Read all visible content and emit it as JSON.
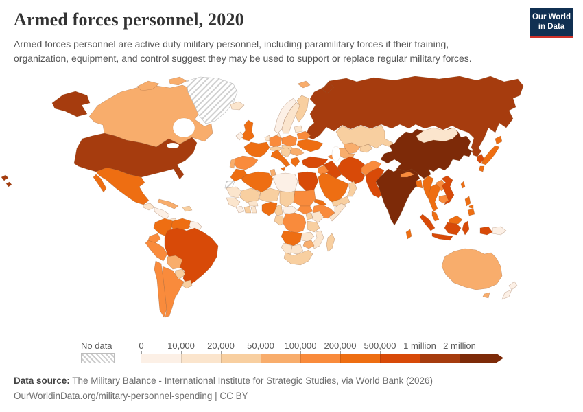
{
  "header": {
    "title": "Armed forces personnel, 2020",
    "subtitle": "Armed forces personnel are active duty military personnel, including paramilitary forces if their training, organization, equipment, and control suggest they may be used to support or replace regular military forces.",
    "logo": {
      "line1": "Our World",
      "line2": "in Data",
      "bg": "#103052",
      "accent": "#cf3129"
    }
  },
  "legend": {
    "no_data_label": "No data",
    "tick_labels": [
      "0",
      "10,000",
      "20,000",
      "50,000",
      "100,000",
      "200,000",
      "500,000",
      "1 million",
      "2 million"
    ],
    "colors": [
      "#fcf0e6",
      "#fbe5cd",
      "#f8cfa0",
      "#f8ad6c",
      "#f98b3c",
      "#ee6e12",
      "#d84a08",
      "#a63c0e",
      "#7d2a08"
    ]
  },
  "footer": {
    "source_label": "Data source:",
    "source_text": " The Military Balance - International Institute for Strategic Studies, via World Bank (2026)",
    "link_text": "OurWorldinData.org/military-personnel-spending | CC BY"
  },
  "chart_data": {
    "type": "choropleth",
    "title": "Armed forces personnel, 2020",
    "unit": "active duty military personnel (including paramilitary)",
    "legend_thresholds": [
      0,
      10000,
      20000,
      50000,
      100000,
      200000,
      500000,
      1000000,
      2000000
    ],
    "bucket_labels": [
      "0–10,000",
      "10,000–20,000",
      "20,000–50,000",
      "50,000–100,000",
      "100,000–200,000",
      "200,000–500,000",
      "500,000–1 million",
      "1–2 million",
      "2 million+"
    ],
    "palette": [
      "#fcf0e6",
      "#fbe5cd",
      "#f8cfa0",
      "#f8ad6c",
      "#f98b3c",
      "#ee6e12",
      "#d84a08",
      "#a63c0e",
      "#7d2a08"
    ],
    "no_data": [
      "greenland",
      "western-sahara"
    ],
    "country_buckets": {
      "russia": 7,
      "novaya-zemlya": 7,
      "svalbard": 3,
      "china": 8,
      "india": 8,
      "nepal": 4,
      "bangladesh": 5,
      "sri-lanka": 5,
      "mongolia": 1,
      "north-korea": 7,
      "south-korea": 6,
      "japan": 5,
      "taiwan": 5,
      "kazakhstan": 2,
      "uzbekistan": 3,
      "turkmenistan": 3,
      "kyrgyz-tajik": 2,
      "azerbaijan": 4,
      "afghanistan": 4,
      "pakistan": 6,
      "iran": 6,
      "iraq": 6,
      "syria": 4,
      "turkey": 6,
      "saudi-arabia": 5,
      "yemen": 2,
      "oman": 2,
      "canada": 3,
      "united-states": 7,
      "mexico": 5,
      "guatemala": 1,
      "honduras-nicaragua": 0,
      "panama-costa-rica": 1,
      "cuba": 3,
      "hispaniola": 2,
      "colombia": 5,
      "venezuela": 5,
      "guianas": 0,
      "ecuador": 4,
      "peru": 4,
      "brazil": 6,
      "bolivia": 3,
      "paraguay": 2,
      "chile": 4,
      "argentina": 4,
      "uruguay": 2,
      "iceland": 1,
      "ireland": 0,
      "united-kingdom": 5,
      "norway": 0,
      "sweden": 1,
      "finland": 2,
      "denmark": 1,
      "low-countries": 1,
      "france": 5,
      "spain": 4,
      "portugal": 3,
      "germany": 4,
      "switzerland-austria": 2,
      "italy": 5,
      "czech-slovakia-hungary": 2,
      "poland": 4,
      "baltics": 1,
      "belarus": 4,
      "ukraine": 5,
      "romania": 3,
      "balkans": 2,
      "greece": 5,
      "morocco": 5,
      "algeria": 5,
      "tunisia": 3,
      "libya": 0,
      "egypt": 6,
      "mauritania": 1,
      "mali": 2,
      "niger": 2,
      "chad": 2,
      "sudan": 4,
      "south-sudan": 4,
      "eritrea": 5,
      "ethiopia": 4,
      "somalia": 1,
      "senegal-guinea": 1,
      "sierra-liberia": 0,
      "ivory-coast": 2,
      "ghana": 1,
      "burkina-faso": 1,
      "nigeria": 5,
      "cameroon": 2,
      "central-african-republic": 0,
      "gabon-congo": 2,
      "dr-congo": 4,
      "uganda": 2,
      "kenya": 1,
      "tanzania": 2,
      "angola": 5,
      "zambia": 1,
      "mozambique": 1,
      "zimbabwe": 3,
      "namibia": 1,
      "botswana": 1,
      "south-africa": 2,
      "madagascar": 2,
      "myanmar": 5,
      "thailand": 5,
      "laos": 4,
      "vietnam": 6,
      "cambodia": 4,
      "malaysia": 5,
      "malaysia-borneo": 5,
      "indonesia": 6,
      "philippines": 5,
      "papua-new-guinea": 0,
      "australia": 3,
      "new-zealand": 0
    }
  }
}
